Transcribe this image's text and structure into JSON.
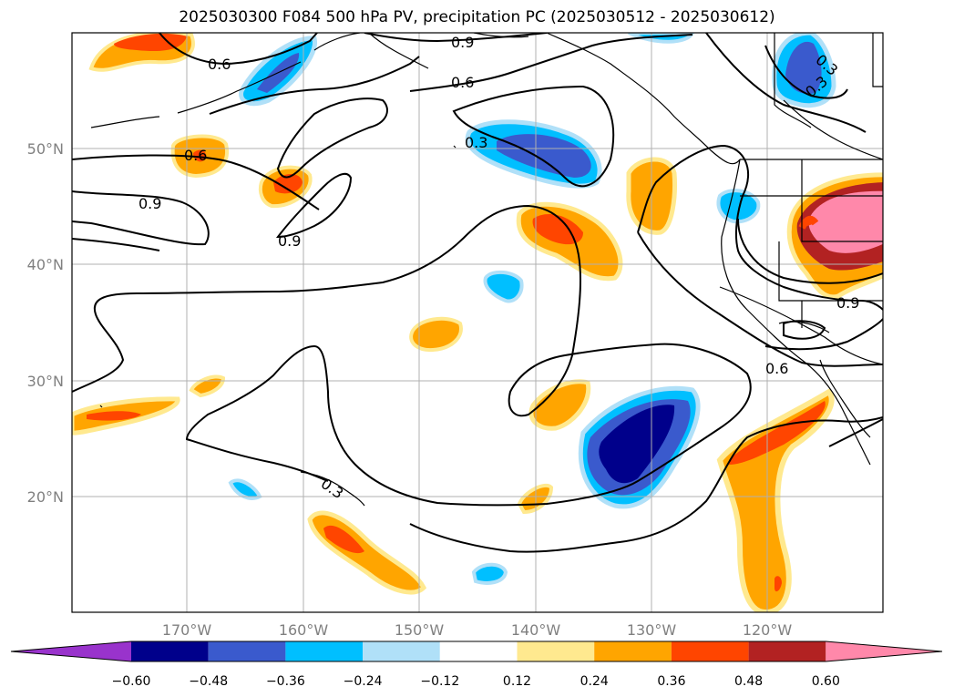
{
  "title": "2025030300 F084 500 hPa PV, precipitation PC (2025030512 - 2025030612)",
  "longitude_labels": [
    "170°W",
    "160°W",
    "150°W",
    "140°W",
    "130°W",
    "120°W"
  ],
  "latitude_labels": [
    "50°N",
    "40°N",
    "30°N",
    "20°N"
  ],
  "contour_labels": [
    "0.6",
    "0.9",
    "0.6",
    "0.3",
    "0.6",
    "0.9",
    "0.9",
    "0.3",
    "0.3",
    "0.9",
    "0.6",
    "0.3"
  ],
  "colorbar": {
    "tick_labels": [
      "−0.60",
      "−0.48",
      "−0.36",
      "−0.24",
      "−0.12",
      "0.12",
      "0.24",
      "0.36",
      "0.48",
      "0.60"
    ],
    "colors": [
      "#9933cc",
      "#00008b",
      "#3a5acd",
      "#00bfff",
      "#b0e0f8",
      "#ffffff",
      "#ffe98f",
      "#ffa500",
      "#ff4500",
      "#b22222",
      "#ff88aa"
    ]
  },
  "legend_colors": {
    "strong_negative": "#00008b",
    "negative": "#3a5acd",
    "moderate_negative": "#00bfff",
    "weak_negative": "#b0e0f8",
    "weak_positive": "#ffe98f",
    "moderate_positive": "#ffa500",
    "positive": "#ff4500",
    "strong_positive": "#b22222",
    "extreme_positive": "#ff88aa"
  }
}
